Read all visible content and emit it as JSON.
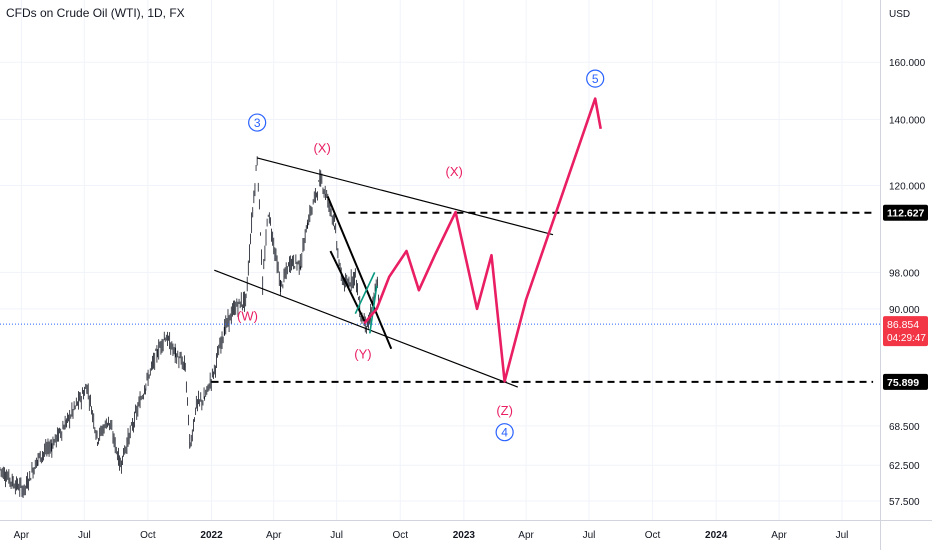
{
  "header": {
    "symbol_title": "CFDs on Crude Oil (WTI), 1D, FX",
    "currency": "USD"
  },
  "chart_data": {
    "type": "line",
    "title": "CFDs on Crude Oil (WTI), 1D, FX",
    "xlabel": "",
    "ylabel": "",
    "y_scale": "log",
    "ylim": [
      55,
      185
    ],
    "y_ticks": [
      {
        "value": 57.5,
        "label": "57.500"
      },
      {
        "value": 62.5,
        "label": "62.500"
      },
      {
        "value": 68.5,
        "label": "68.500"
      },
      {
        "value": 90.0,
        "label": "90.000"
      },
      {
        "value": 98.0,
        "label": "98.000"
      },
      {
        "value": 120.0,
        "label": "120.000"
      },
      {
        "value": 140.0,
        "label": "140.000"
      },
      {
        "value": 160.0,
        "label": "160.000"
      }
    ],
    "x_ticks": [
      {
        "date": "2021-04-01",
        "label": "Apr",
        "bold": false
      },
      {
        "date": "2021-07-01",
        "label": "Jul",
        "bold": false
      },
      {
        "date": "2021-10-01",
        "label": "Oct",
        "bold": false
      },
      {
        "date": "2022-01-01",
        "label": "2022",
        "bold": true
      },
      {
        "date": "2022-04-01",
        "label": "Apr",
        "bold": false
      },
      {
        "date": "2022-07-01",
        "label": "Jul",
        "bold": false
      },
      {
        "date": "2022-10-01",
        "label": "Oct",
        "bold": false
      },
      {
        "date": "2023-01-01",
        "label": "2023",
        "bold": true
      },
      {
        "date": "2023-04-01",
        "label": "Apr",
        "bold": false
      },
      {
        "date": "2023-07-01",
        "label": "Jul",
        "bold": false
      },
      {
        "date": "2023-10-01",
        "label": "Oct",
        "bold": false
      },
      {
        "date": "2024-01-01",
        "label": "2024",
        "bold": true
      },
      {
        "date": "2024-04-01",
        "label": "Apr",
        "bold": false
      },
      {
        "date": "2024-07-01",
        "label": "Jul",
        "bold": false
      }
    ],
    "grid": true,
    "price_series": {
      "name": "CFDs on Crude Oil (WTI)",
      "color": "#131722",
      "points": [
        [
          "2021-03-01",
          62.0
        ],
        [
          "2021-03-20",
          60.0
        ],
        [
          "2021-04-05",
          59.0
        ],
        [
          "2021-04-25",
          63.5
        ],
        [
          "2021-05-15",
          65.5
        ],
        [
          "2021-06-05",
          69.0
        ],
        [
          "2021-06-25",
          73.0
        ],
        [
          "2021-07-05",
          75.0
        ],
        [
          "2021-07-20",
          66.5
        ],
        [
          "2021-08-05",
          69.5
        ],
        [
          "2021-08-22",
          62.5
        ],
        [
          "2021-09-10",
          69.0
        ],
        [
          "2021-09-28",
          75.5
        ],
        [
          "2021-10-15",
          81.5
        ],
        [
          "2021-10-26",
          84.5
        ],
        [
          "2021-11-10",
          81.0
        ],
        [
          "2021-11-24",
          78.5
        ],
        [
          "2021-12-01",
          65.0
        ],
        [
          "2021-12-10",
          72.0
        ],
        [
          "2021-12-22",
          73.0
        ],
        [
          "2022-01-05",
          78.0
        ],
        [
          "2022-01-20",
          86.0
        ],
        [
          "2022-02-05",
          90.5
        ],
        [
          "2022-02-20",
          92.0
        ],
        [
          "2022-03-08",
          127.5
        ],
        [
          "2022-03-16",
          95.0
        ],
        [
          "2022-03-24",
          113.0
        ],
        [
          "2022-04-11",
          94.5
        ],
        [
          "2022-04-25",
          100.5
        ],
        [
          "2022-05-10",
          100.0
        ],
        [
          "2022-05-20",
          110.0
        ],
        [
          "2022-06-08",
          122.0
        ],
        [
          "2022-06-15",
          118.0
        ],
        [
          "2022-06-28",
          110.0
        ],
        [
          "2022-07-06",
          98.0
        ],
        [
          "2022-07-14",
          95.0
        ],
        [
          "2022-07-28",
          97.5
        ],
        [
          "2022-08-05",
          88.5
        ],
        [
          "2022-08-16",
          86.5
        ],
        [
          "2022-08-29",
          96.0
        ],
        [
          "2022-09-01",
          86.854
        ]
      ]
    },
    "annotations": {
      "last_price": {
        "value": 86.854,
        "label": "86.854",
        "countdown": "04:29:47",
        "color": "#f23645"
      },
      "levels": [
        {
          "value": 112.627,
          "label": "112.627",
          "from": "2022-07-18",
          "to": "2024-08-15",
          "color": "#000000"
        },
        {
          "value": 75.899,
          "label": "75.899",
          "from": "2022-01-01",
          "to": "2024-08-15",
          "color": "#000000"
        }
      ],
      "channel_lines": [
        {
          "from": [
            "2022-03-08",
            128.0
          ],
          "to": [
            "2023-05-10",
            107.0
          ],
          "color": "#000000"
        },
        {
          "from": [
            "2022-01-05",
            98.5
          ],
          "to": [
            "2023-03-20",
            75.0
          ],
          "color": "#000000"
        }
      ],
      "wedge_lines": [
        {
          "from": [
            "2022-06-18",
            117.0
          ],
          "to": [
            "2022-09-18",
            82.0
          ],
          "color": "#000000"
        },
        {
          "from": [
            "2022-06-22",
            103.0
          ],
          "to": [
            "2022-08-12",
            87.0
          ],
          "color": "#000000"
        }
      ],
      "green_lines": [
        {
          "from": [
            "2022-07-28",
            89.0
          ],
          "to": [
            "2022-08-25",
            98.0
          ],
          "color": "#089981"
        },
        {
          "from": [
            "2022-08-18",
            85.0
          ],
          "to": [
            "2022-08-28",
            95.0
          ],
          "color": "#089981"
        }
      ],
      "projection": {
        "color": "#e91e63",
        "points": [
          [
            "2022-08-10",
            87.0
          ],
          [
            "2022-08-28",
            90.0
          ],
          [
            "2022-09-15",
            97.0
          ],
          [
            "2022-10-10",
            103.0
          ],
          [
            "2022-10-28",
            94.0
          ],
          [
            "2022-11-20",
            102.0
          ],
          [
            "2022-12-20",
            112.8
          ],
          [
            "2023-01-20",
            90.0
          ],
          [
            "2023-02-10",
            102.0
          ],
          [
            "2023-03-01",
            76.0
          ],
          [
            "2023-04-01",
            92.0
          ],
          [
            "2023-07-10",
            147.0
          ],
          [
            "2023-07-18",
            137.0
          ]
        ]
      },
      "wave_labels": [
        {
          "text": "3",
          "date": "2022-03-08",
          "price": 139.0,
          "color": "#2962ff",
          "circled": true
        },
        {
          "text": "(X)",
          "date": "2022-06-10",
          "price": 131.0,
          "color": "#e91e63",
          "circled": false
        },
        {
          "text": "(X)",
          "date": "2022-12-18",
          "price": 124.0,
          "color": "#e91e63",
          "circled": false
        },
        {
          "text": "(W)",
          "date": "2022-02-22",
          "price": 88.5,
          "color": "#e91e63",
          "circled": false
        },
        {
          "text": "(Y)",
          "date": "2022-08-08",
          "price": 81.0,
          "color": "#e91e63",
          "circled": false
        },
        {
          "text": "(Z)",
          "date": "2023-03-01",
          "price": 71.0,
          "color": "#e91e63",
          "circled": false
        },
        {
          "text": "4",
          "date": "2023-03-01",
          "price": 67.5,
          "color": "#2962ff",
          "circled": true
        },
        {
          "text": "5",
          "date": "2023-07-10",
          "price": 154.0,
          "color": "#2962ff",
          "circled": true
        }
      ]
    }
  }
}
